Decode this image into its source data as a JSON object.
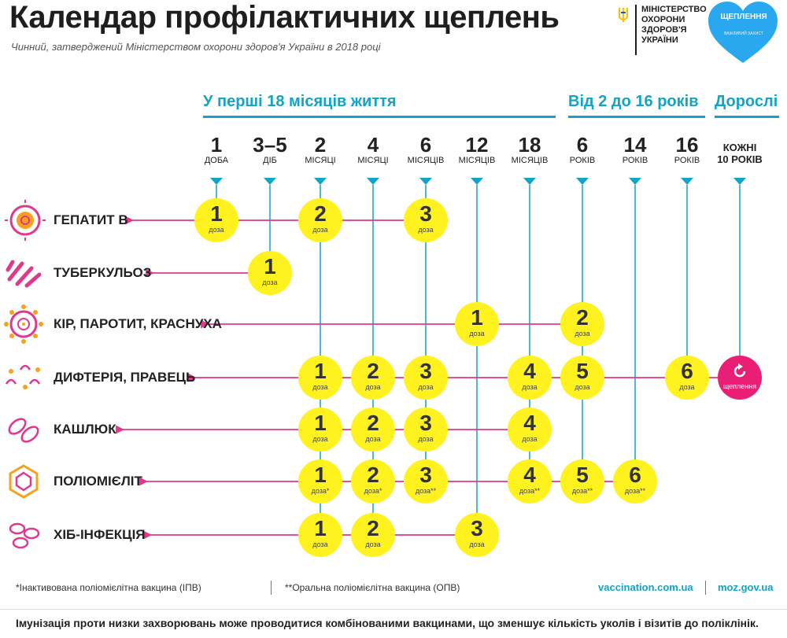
{
  "header": {
    "title": "Календар профілактичних щеплень",
    "subtitle": "Чинний, затверджений Міністерством охорони здоров'я України в 2018 році"
  },
  "ministry": {
    "lines": [
      "МІНІСТЕРСТВО",
      "ОХОРОНИ",
      "ЗДОРОВ'Я",
      "УКРАЇНИ"
    ]
  },
  "logo": {
    "title": "ЩЕПЛЕННЯ",
    "sub": "ВАЖЛИВИЙ ЗАХИСТ"
  },
  "bands": {
    "first": "У перші 18 місяців життя",
    "second": "Від 2 до 16 років",
    "third": "Дорослі"
  },
  "ages": [
    {
      "num": "1",
      "unit": "ДОБА"
    },
    {
      "num": "3–5",
      "unit": "ДІБ"
    },
    {
      "num": "2",
      "unit": "МІСЯЦІ"
    },
    {
      "num": "4",
      "unit": "МІСЯЦІ"
    },
    {
      "num": "6",
      "unit": "МІСЯЦІВ"
    },
    {
      "num": "12",
      "unit": "МІСЯЦІВ"
    },
    {
      "num": "18",
      "unit": "МІСЯЦІВ"
    },
    {
      "num": "6",
      "unit": "РОКІВ"
    },
    {
      "num": "14",
      "unit": "РОКІВ"
    },
    {
      "num": "16",
      "unit": "РОКІВ"
    },
    {
      "num": "КОЖНІ",
      "unit": "10 РОКІВ"
    }
  ],
  "dose_word": "доза",
  "revaccination_word": "щеплення",
  "diseases": [
    {
      "label": "ГЕПАТИТ В",
      "icon": "hepatitis-icon",
      "doses": [
        {
          "col": 0,
          "n": "1"
        },
        {
          "col": 2,
          "n": "2"
        },
        {
          "col": 4,
          "n": "3"
        }
      ]
    },
    {
      "label": "ТУБЕРКУЛЬОЗ",
      "icon": "tuberculosis-icon",
      "doses": [
        {
          "col": 1,
          "n": "1"
        }
      ]
    },
    {
      "label": "КІР, ПАРОТИТ, КРАСНУХА",
      "icon": "measles-icon",
      "doses": [
        {
          "col": 5,
          "n": "1"
        },
        {
          "col": 7,
          "n": "2"
        }
      ]
    },
    {
      "label": "ДИФТЕРІЯ, ПРАВЕЦЬ",
      "icon": "diphtheria-icon",
      "doses": [
        {
          "col": 2,
          "n": "1"
        },
        {
          "col": 3,
          "n": "2"
        },
        {
          "col": 4,
          "n": "3"
        },
        {
          "col": 6,
          "n": "4"
        },
        {
          "col": 7,
          "n": "5"
        },
        {
          "col": 9,
          "n": "6"
        }
      ]
    },
    {
      "label": "КАШЛЮК",
      "icon": "pertussis-icon",
      "doses": [
        {
          "col": 2,
          "n": "1"
        },
        {
          "col": 3,
          "n": "2"
        },
        {
          "col": 4,
          "n": "3"
        },
        {
          "col": 6,
          "n": "4"
        }
      ]
    },
    {
      "label": "ПОЛІОМІЄЛІТ",
      "icon": "polio-icon",
      "doses": [
        {
          "col": 2,
          "n": "1",
          "mark": "*"
        },
        {
          "col": 3,
          "n": "2",
          "mark": "*"
        },
        {
          "col": 4,
          "n": "3",
          "mark": "**"
        },
        {
          "col": 6,
          "n": "4",
          "mark": "**"
        },
        {
          "col": 7,
          "n": "5",
          "mark": "**"
        },
        {
          "col": 8,
          "n": "6",
          "mark": "**"
        }
      ]
    },
    {
      "label": "ХІБ-ІНФЕКЦІЯ",
      "icon": "hib-icon",
      "doses": [
        {
          "col": 2,
          "n": "1"
        },
        {
          "col": 3,
          "n": "2"
        },
        {
          "col": 5,
          "n": "3"
        }
      ]
    }
  ],
  "footer": {
    "note1": "*Інактивована поліомієлітна вакцина (ІПВ)",
    "note2": "**Оральна поліомієлітна вакцина (ОПВ)",
    "site1": "vaccination.com.ua",
    "site2": "moz.gov.ua",
    "bottom": "Імунізація проти низки захворювань може проводитися комбінованими вакцинами, що зменшує кількість уколів і візитів до поліклінік."
  },
  "colors": {
    "accent": "#12a4c6",
    "dose": "#fff21f",
    "line": "#e0388a",
    "revacc": "#ea1e74",
    "icon": "#e0388a"
  }
}
